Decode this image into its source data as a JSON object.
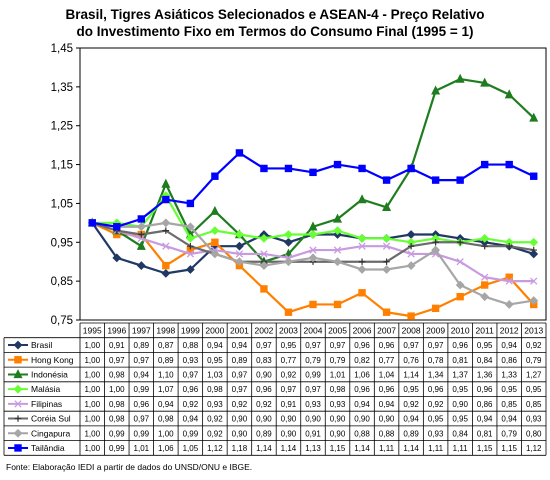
{
  "chart_data": {
    "type": "line",
    "title": "Brasil, Tigres Asiáticos Selecionados e ASEAN-4 - Preço Relativo",
    "subtitle": "do Investimento Fixo em Termos do Consumo Final (1995 = 1)",
    "x": [
      "1995",
      "1996",
      "1997",
      "1998",
      "1999",
      "2000",
      "2001",
      "2002",
      "2003",
      "2004",
      "2005",
      "2006",
      "2007",
      "2008",
      "2009",
      "2010",
      "2011",
      "2012",
      "2013"
    ],
    "ylim": [
      0.75,
      1.45
    ],
    "yticks": [
      "0,75",
      "0,85",
      "0,95",
      "1,05",
      "1,15",
      "1,25",
      "1,35",
      "1,45"
    ],
    "grid": "none",
    "legend": "data-table",
    "series": [
      {
        "name": "Brasil",
        "color": "#1f3864",
        "marker": "diamond",
        "values": [
          1.0,
          0.91,
          0.89,
          0.87,
          0.88,
          0.94,
          0.94,
          0.97,
          0.95,
          0.97,
          0.97,
          0.96,
          0.96,
          0.97,
          0.97,
          0.96,
          0.95,
          0.94,
          0.92
        ],
        "labels": [
          "1,00",
          "0,91",
          "0,89",
          "0,87",
          "0,88",
          "0,94",
          "0,94",
          "0,97",
          "0,95",
          "0,97",
          "0,97",
          "0,96",
          "0,96",
          "0,97",
          "0,97",
          "0,96",
          "0,95",
          "0,94",
          "0,92"
        ]
      },
      {
        "name": "Hong Kong",
        "color": "#ff8000",
        "marker": "square",
        "values": [
          1.0,
          0.97,
          0.97,
          0.89,
          0.93,
          0.95,
          0.89,
          0.83,
          0.77,
          0.79,
          0.79,
          0.82,
          0.77,
          0.76,
          0.78,
          0.81,
          0.84,
          0.86,
          0.79
        ],
        "labels": [
          "1,00",
          "0,97",
          "0,97",
          "0,89",
          "0,93",
          "0,95",
          "0,89",
          "0,83",
          "0,77",
          "0,79",
          "0,79",
          "0,82",
          "0,77",
          "0,76",
          "0,78",
          "0,81",
          "0,84",
          "0,86",
          "0,79"
        ]
      },
      {
        "name": "Indonésia",
        "color": "#1e7d1e",
        "marker": "triangle",
        "values": [
          1.0,
          0.98,
          0.94,
          1.1,
          0.97,
          1.03,
          0.97,
          0.9,
          0.92,
          0.99,
          1.01,
          1.06,
          1.04,
          1.14,
          1.34,
          1.37,
          1.36,
          1.33,
          1.27
        ],
        "labels": [
          "1,00",
          "0,98",
          "0,94",
          "1,10",
          "0,97",
          "1,03",
          "0,97",
          "0,90",
          "0,92",
          "0,99",
          "1,01",
          "1,06",
          "1,04",
          "1,14",
          "1,34",
          "1,37",
          "1,36",
          "1,33",
          "1,27"
        ]
      },
      {
        "name": "Malásia",
        "color": "#66ff33",
        "marker": "diamond",
        "values": [
          1.0,
          1.0,
          0.99,
          1.07,
          0.96,
          0.98,
          0.97,
          0.96,
          0.97,
          0.97,
          0.98,
          0.96,
          0.96,
          0.95,
          0.96,
          0.95,
          0.96,
          0.95,
          0.95
        ],
        "labels": [
          "1,00",
          "1,00",
          "0,99",
          "1,07",
          "0,96",
          "0,98",
          "0,97",
          "0,96",
          "0,97",
          "0,97",
          "0,98",
          "0,96",
          "0,96",
          "0,95",
          "0,96",
          "0,95",
          "0,96",
          "0,95",
          "0,95"
        ]
      },
      {
        "name": "Filipinas",
        "color": "#c89be0",
        "marker": "x",
        "values": [
          1.0,
          0.98,
          0.96,
          0.94,
          0.92,
          0.93,
          0.92,
          0.92,
          0.91,
          0.93,
          0.93,
          0.94,
          0.94,
          0.92,
          0.92,
          0.9,
          0.86,
          0.85,
          0.85
        ],
        "labels": [
          "1,00",
          "0,98",
          "0,96",
          "0,94",
          "0,92",
          "0,93",
          "0,92",
          "0,92",
          "0,91",
          "0,93",
          "0,93",
          "0,94",
          "0,94",
          "0,92",
          "0,92",
          "0,90",
          "0,86",
          "0,85",
          "0,85"
        ]
      },
      {
        "name": "Coréia Sul",
        "color": "#6b6b6b",
        "marker": "plus",
        "values": [
          1.0,
          0.98,
          0.97,
          0.98,
          0.94,
          0.92,
          0.9,
          0.9,
          0.9,
          0.9,
          0.9,
          0.9,
          0.9,
          0.94,
          0.95,
          0.95,
          0.94,
          0.94,
          0.93
        ],
        "labels": [
          "1,00",
          "0,98",
          "0,97",
          "0,98",
          "0,94",
          "0,92",
          "0,90",
          "0,90",
          "0,90",
          "0,90",
          "0,90",
          "0,90",
          "0,90",
          "0,94",
          "0,95",
          "0,95",
          "0,94",
          "0,94",
          "0,93"
        ]
      },
      {
        "name": "Cingapura",
        "color": "#a6a6a6",
        "marker": "diamond",
        "values": [
          1.0,
          0.99,
          0.99,
          1.0,
          0.99,
          0.92,
          0.9,
          0.89,
          0.9,
          0.91,
          0.9,
          0.88,
          0.88,
          0.89,
          0.93,
          0.84,
          0.81,
          0.79,
          0.8
        ],
        "labels": [
          "1,00",
          "0,99",
          "0,99",
          "1,00",
          "0,99",
          "0,92",
          "0,90",
          "0,89",
          "0,90",
          "0,91",
          "0,90",
          "0,88",
          "0,88",
          "0,89",
          "0,93",
          "0,84",
          "0,81",
          "0,79",
          "0,80"
        ]
      },
      {
        "name": "Tailândia",
        "color": "#0000ff",
        "marker": "square",
        "values": [
          1.0,
          0.99,
          1.01,
          1.06,
          1.05,
          1.12,
          1.18,
          1.14,
          1.14,
          1.13,
          1.15,
          1.14,
          1.11,
          1.14,
          1.11,
          1.11,
          1.15,
          1.15,
          1.12
        ],
        "labels": [
          "1,00",
          "0,99",
          "1,01",
          "1,06",
          "1,05",
          "1,12",
          "1,18",
          "1,14",
          "1,14",
          "1,13",
          "1,15",
          "1,14",
          "1,11",
          "1,14",
          "1,11",
          "1,11",
          "1,15",
          "1,15",
          "1,12"
        ]
      }
    ],
    "source": "Fonte: Elaboração IEDI a partir de dados do UNSD/ONU e IBGE."
  }
}
